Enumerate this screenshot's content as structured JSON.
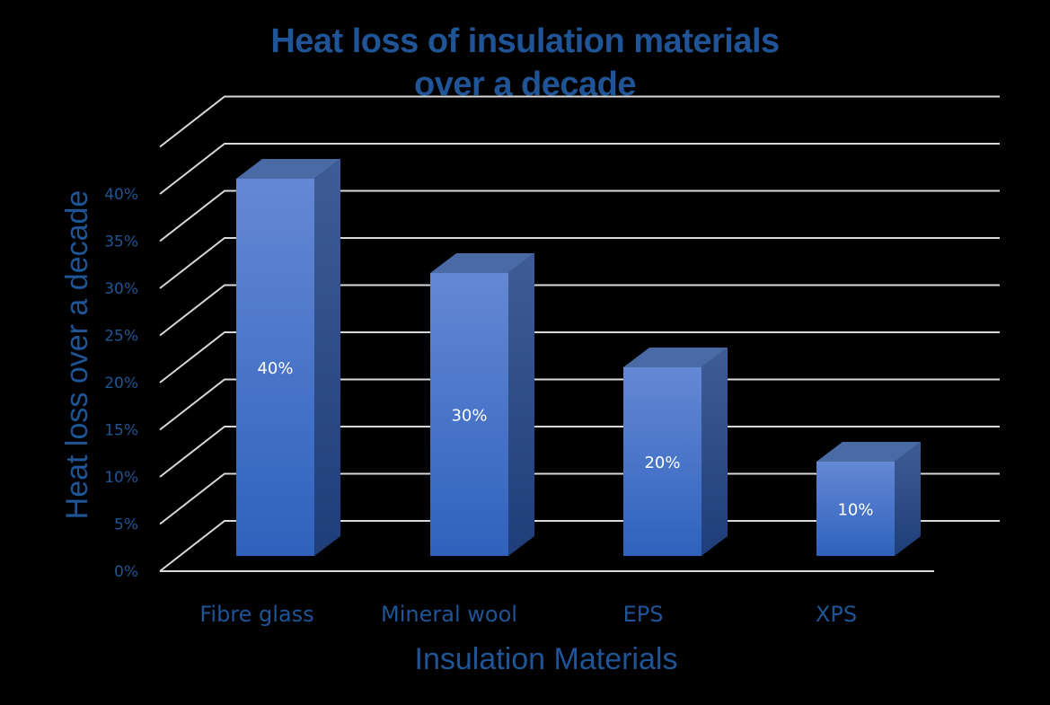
{
  "chart_data": {
    "type": "bar",
    "style": "3d-column",
    "title": "Heat loss of insulation materials over a decade",
    "title_lines": [
      "Heat loss of insulation materials",
      "over a decade"
    ],
    "xlabel": "Insulation Materials",
    "ylabel": "Heat loss over a decade",
    "categories": [
      "Fibre glass",
      "Mineral wool",
      "EPS",
      "XPS"
    ],
    "values": [
      0.4,
      0.3,
      0.2,
      0.1
    ],
    "data_labels": [
      "40%",
      "30%",
      "20%",
      "10%"
    ],
    "y_ticks": [
      "0%",
      "5%",
      "10%",
      "15%",
      "20%",
      "25%",
      "30%",
      "35%",
      "40%"
    ],
    "ylim": [
      0,
      0.45
    ],
    "grid": true,
    "legend": "none",
    "colors": {
      "bar_front_top": "#6488d4",
      "bar_front_bottom": "#2f62bd",
      "bar_side_top": "#3f5c96",
      "bar_side_bottom": "#1f3d78",
      "bar_top": "#4a6aa6",
      "text": "#1f5596",
      "grid": "#d9d9d9",
      "background": "#000000"
    }
  }
}
